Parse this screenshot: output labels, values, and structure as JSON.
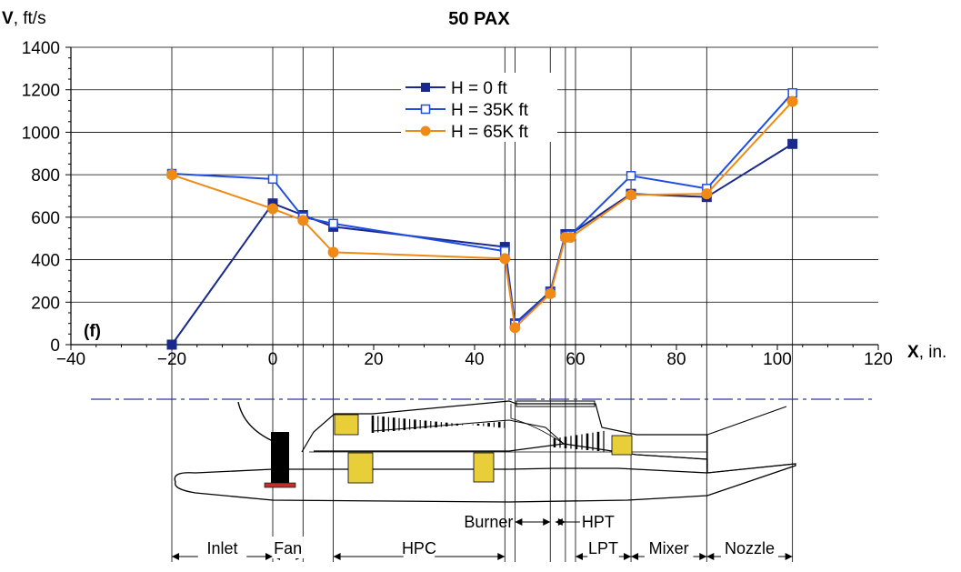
{
  "chart_data": {
    "type": "line",
    "title": "50 PAX",
    "ylabel_var": "V",
    "ylabel_unit": ", ft/s",
    "xlabel_var": "X",
    "xlabel_unit": ", in.",
    "panel_label": "(f)",
    "xlim": [
      -40,
      120
    ],
    "ylim": [
      0,
      1400
    ],
    "x_ticks": [
      -40,
      -20,
      0,
      20,
      40,
      60,
      80,
      100,
      120
    ],
    "x_tick_labels": [
      "−40",
      "−20",
      "0",
      "20",
      "40",
      "60",
      "80",
      "100",
      "120"
    ],
    "y_ticks": [
      0,
      200,
      400,
      600,
      800,
      1000,
      1200,
      1400
    ],
    "y_tick_labels": [
      "0",
      "200",
      "400",
      "600",
      "800",
      "1000",
      "1200",
      "1400"
    ],
    "grid_x": [
      -20,
      0,
      6,
      12,
      46,
      48,
      55,
      58,
      60,
      71,
      86,
      103
    ],
    "grid": true,
    "legend_position": "top-center",
    "series": [
      {
        "name": "H = 0      ft",
        "color": "#1a2a8c",
        "marker": "square-filled",
        "x": [
          -20,
          0,
          6,
          12,
          46,
          48,
          55,
          58,
          59,
          71,
          86,
          103
        ],
        "y": [
          0,
          665,
          610,
          555,
          460,
          100,
          250,
          520,
          520,
          710,
          695,
          945
        ]
      },
      {
        "name": "H = 35K ft",
        "color": "#1f4de0",
        "marker": "square-open",
        "x": [
          -20,
          0,
          6,
          12,
          46,
          48,
          55,
          58,
          59,
          71,
          86,
          103
        ],
        "y": [
          805,
          780,
          600,
          570,
          440,
          95,
          245,
          510,
          515,
          795,
          735,
          1185
        ]
      },
      {
        "name": "H = 65K ft",
        "color": "#ef8a17",
        "marker": "circle-filled",
        "x": [
          -20,
          0,
          6,
          12,
          46,
          48,
          55,
          58,
          59,
          71,
          86,
          103
        ],
        "y": [
          800,
          640,
          585,
          435,
          405,
          80,
          240,
          505,
          505,
          705,
          710,
          1145
        ]
      }
    ]
  },
  "engine_sections": {
    "segments": [
      {
        "label": "Inlet",
        "from": -20,
        "to": 0
      },
      {
        "label": "Fan",
        "from": 0,
        "to": 6
      },
      {
        "label": "HPC",
        "from": 12,
        "to": 46
      },
      {
        "label": "LPT",
        "from": 60,
        "to": 71
      },
      {
        "label": "Mixer",
        "from": 71,
        "to": 86
      },
      {
        "label": "Nozzle",
        "from": 86,
        "to": 103
      }
    ],
    "burner_label": "Burner",
    "burner_from": 48,
    "burner_to": 55,
    "hpt_label": "HPT",
    "hpt_from": 56,
    "hpt_to": 58,
    "colors": {
      "disk": "#e8cf3a",
      "blade": "#000000",
      "mount": "#c0302a",
      "centerline": "#2a3a9a"
    }
  }
}
